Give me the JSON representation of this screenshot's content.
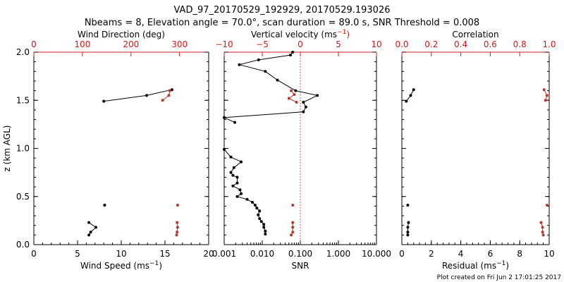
{
  "title": "VAD_97_20170529_192929, 20170529.193026",
  "subtitle": "Nbeams = 8, Elevation angle = 70.0°, scan duration = 89.0 s, SNR Threshold = 0.008",
  "credit": "Plot created on Fri Jun  2 17:01:25 2017",
  "colors": {
    "black": "#000000",
    "red": "#d21a1a",
    "series_red": "#b03a2e"
  },
  "chart_data": [
    {
      "type": "scatter",
      "ylabel": "z (km AGL)",
      "ylim": [
        0,
        2
      ],
      "yticks": [
        "0.0",
        "0.5",
        "1.0",
        "1.5",
        "2.0"
      ],
      "xlabel_bottom": "Wind Speed (ms",
      "xlabel_bottom_sup": "−1",
      "xlabel_bottom_end": ")",
      "xlim_bottom": [
        0,
        20
      ],
      "xticks_bottom": [
        "0",
        "5",
        "10",
        "15",
        "20"
      ],
      "xlabel_top": "Wind Direction (deg)",
      "xlim_top": [
        0,
        360
      ],
      "xticks_top": [
        "0",
        "100",
        "200",
        "300"
      ],
      "series": [
        {
          "axis": "bottom",
          "color": "#000000",
          "connected": true,
          "points": [
            [
              8.0,
              1.49
            ],
            [
              12.9,
              1.55
            ],
            [
              15.8,
              1.61
            ]
          ]
        },
        {
          "axis": "bottom",
          "color": "#000000",
          "connected": false,
          "points": [
            [
              8.1,
              0.41
            ]
          ]
        },
        {
          "axis": "bottom",
          "color": "#000000",
          "connected": true,
          "points": [
            [
              6.3,
              0.1
            ],
            [
              6.5,
              0.13
            ],
            [
              7.1,
              0.18
            ],
            [
              6.3,
              0.23
            ]
          ]
        },
        {
          "axis": "top",
          "color": "#b03a2e",
          "connected": true,
          "points": [
            [
              265,
              1.5
            ],
            [
              278,
              1.55
            ],
            [
              280,
              1.6
            ]
          ]
        },
        {
          "axis": "top",
          "color": "#b03a2e",
          "connected": false,
          "points": [
            [
              296,
              0.41
            ]
          ]
        },
        {
          "axis": "top",
          "color": "#b03a2e",
          "connected": true,
          "points": [
            [
              294,
              0.1
            ],
            [
              295,
              0.13
            ],
            [
              296,
              0.18
            ],
            [
              295,
              0.23
            ]
          ]
        }
      ]
    },
    {
      "type": "line",
      "xlabel_bottom": "SNR",
      "xlim_bottom": [
        0.001,
        10
      ],
      "xscale_bottom": "log",
      "xticks_bottom": [
        "0.001",
        "0.010",
        "0.100",
        "1.000",
        "10.000"
      ],
      "xlabel_top": "Vertical velocity (ms",
      "xlabel_top_sup": "−1",
      "xlabel_top_end": ")",
      "xlim_top": [
        -10,
        10
      ],
      "xticks_top": [
        "−10",
        "−5",
        "0",
        "5",
        "10"
      ],
      "reference_line": {
        "axis": "top",
        "value": 0,
        "style": "dotted"
      },
      "series": [
        {
          "axis": "bottom",
          "color": "#000000",
          "connected": true,
          "points": [
            [
              0.012,
              0.11
            ],
            [
              0.012,
              0.14
            ],
            [
              0.011,
              0.18
            ],
            [
              0.011,
              0.21
            ],
            [
              0.0095,
              0.24
            ],
            [
              0.0085,
              0.27
            ],
            [
              0.0078,
              0.31
            ],
            [
              0.0085,
              0.35
            ],
            [
              0.0072,
              0.38
            ],
            [
              0.0065,
              0.41
            ],
            [
              0.0055,
              0.44
            ],
            [
              0.004,
              0.47
            ],
            [
              0.0022,
              0.5
            ],
            [
              0.0028,
              0.53
            ],
            [
              0.0026,
              0.57
            ],
            [
              0.0017,
              0.61
            ],
            [
              0.0022,
              0.64
            ],
            [
              0.0022,
              0.7
            ],
            [
              0.0017,
              0.72
            ],
            [
              0.0015,
              0.75
            ],
            [
              0.0018,
              0.8
            ],
            [
              0.0028,
              0.86
            ],
            [
              0.0015,
              0.91
            ],
            [
              0.001,
              0.99
            ]
          ]
        },
        {
          "axis": "bottom",
          "color": "#000000",
          "connected": true,
          "points": [
            [
              0.0019,
              1.27
            ],
            [
              0.001,
              1.32
            ],
            [
              0.12,
              1.38
            ],
            [
              0.14,
              1.43
            ],
            [
              0.12,
              1.48
            ],
            [
              0.28,
              1.55
            ],
            [
              0.075,
              1.6
            ],
            [
              0.025,
              1.71
            ],
            [
              0.012,
              1.8
            ],
            [
              0.0025,
              1.87
            ],
            [
              0.008,
              1.92
            ],
            [
              0.055,
              1.97
            ],
            [
              0.063,
              2.0
            ]
          ]
        },
        {
          "axis": "top",
          "color": "#b03a2e",
          "connected": true,
          "points": [
            [
              -1.2,
              1.6
            ],
            [
              -0.8,
              1.56
            ],
            [
              -1.5,
              1.52
            ],
            [
              -0.5,
              1.48
            ]
          ]
        },
        {
          "axis": "top",
          "color": "#b03a2e",
          "connected": false,
          "points": [
            [
              -1.0,
              0.41
            ]
          ]
        },
        {
          "axis": "top",
          "color": "#b03a2e",
          "connected": true,
          "points": [
            [
              -1.2,
              0.1
            ],
            [
              -1.0,
              0.13
            ],
            [
              -1.0,
              0.18
            ],
            [
              -1.0,
              0.23
            ]
          ]
        }
      ]
    },
    {
      "type": "scatter",
      "xlabel_bottom": "Residual (ms",
      "xlabel_bottom_sup": "−1",
      "xlabel_bottom_end": ")",
      "xlim_bottom": [
        0,
        10
      ],
      "xticks_bottom": [
        "0",
        "2",
        "4",
        "6",
        "8",
        "10"
      ],
      "xlabel_top": "Correlation",
      "xlim_top": [
        0,
        1
      ],
      "xticks_top": [
        "0.0",
        "0.2",
        "0.4",
        "0.6",
        "0.8",
        "1.0"
      ],
      "series": [
        {
          "axis": "bottom",
          "color": "#000000",
          "connected": true,
          "points": [
            [
              0.3,
              1.49
            ],
            [
              0.6,
              1.55
            ],
            [
              0.8,
              1.61
            ]
          ]
        },
        {
          "axis": "bottom",
          "color": "#000000",
          "connected": false,
          "points": [
            [
              0.4,
              0.41
            ]
          ]
        },
        {
          "axis": "bottom",
          "color": "#000000",
          "connected": true,
          "points": [
            [
              0.4,
              0.1
            ],
            [
              0.4,
              0.13
            ],
            [
              0.4,
              0.18
            ],
            [
              0.45,
              0.23
            ]
          ]
        },
        {
          "axis": "top",
          "color": "#b03a2e",
          "connected": true,
          "points": [
            [
              0.975,
              1.5
            ],
            [
              0.985,
              1.55
            ],
            [
              0.965,
              1.61
            ]
          ]
        },
        {
          "axis": "top",
          "color": "#b03a2e",
          "connected": false,
          "points": [
            [
              0.985,
              0.41
            ]
          ]
        },
        {
          "axis": "top",
          "color": "#b03a2e",
          "connected": true,
          "points": [
            [
              0.96,
              0.1
            ],
            [
              0.955,
              0.13
            ],
            [
              0.955,
              0.18
            ],
            [
              0.945,
              0.23
            ]
          ]
        }
      ]
    }
  ]
}
